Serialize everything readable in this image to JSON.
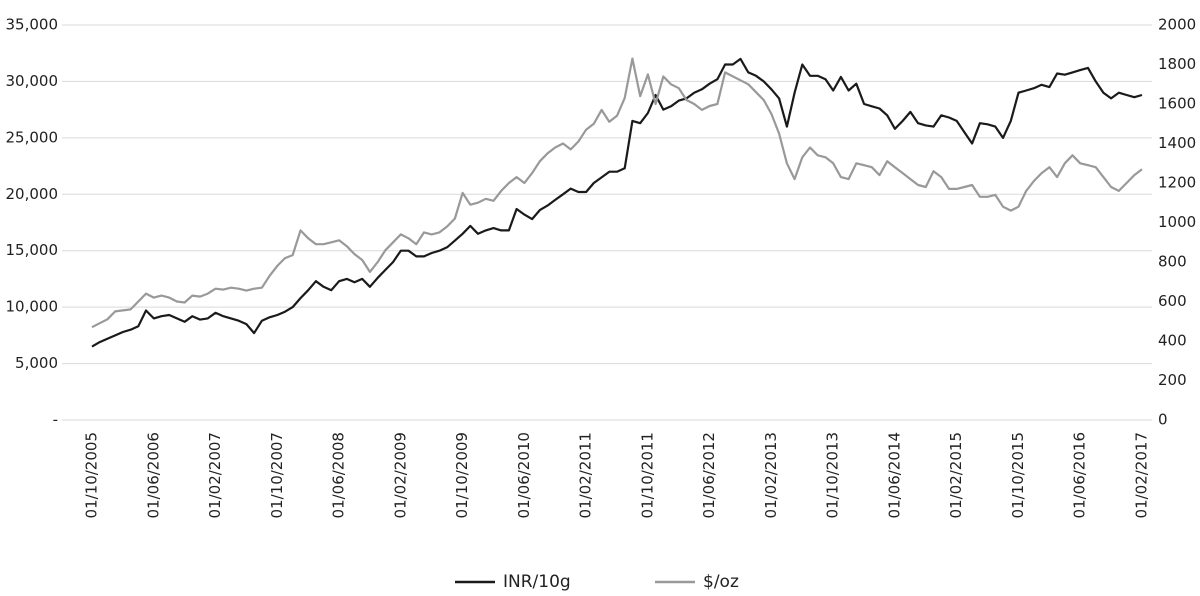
{
  "chart_data": {
    "type": "line",
    "categories": [
      "01/10/2005",
      null,
      null,
      null,
      null,
      null,
      null,
      null,
      "01/06/2006",
      null,
      null,
      null,
      null,
      null,
      null,
      null,
      "01/02/2007",
      null,
      null,
      null,
      null,
      null,
      null,
      null,
      "01/10/2007",
      null,
      null,
      null,
      null,
      null,
      null,
      null,
      "01/06/2008",
      null,
      null,
      null,
      null,
      null,
      null,
      null,
      "01/02/2009",
      null,
      null,
      null,
      null,
      null,
      null,
      null,
      "01/10/2009",
      null,
      null,
      null,
      null,
      null,
      null,
      null,
      "01/06/2010",
      null,
      null,
      null,
      null,
      null,
      null,
      null,
      "01/02/2011",
      null,
      null,
      null,
      null,
      null,
      null,
      null,
      "01/10/2011",
      null,
      null,
      null,
      null,
      null,
      null,
      null,
      "01/06/2012",
      null,
      null,
      null,
      null,
      null,
      null,
      null,
      "01/02/2013",
      null,
      null,
      null,
      null,
      null,
      null,
      null,
      "01/10/2013",
      null,
      null,
      null,
      null,
      null,
      null,
      null,
      "01/06/2014",
      null,
      null,
      null,
      null,
      null,
      null,
      null,
      "01/02/2015",
      null,
      null,
      null,
      null,
      null,
      null,
      null,
      "01/10/2015",
      null,
      null,
      null,
      null,
      null,
      null,
      null,
      "01/06/2016",
      null,
      null,
      null,
      null,
      null,
      null,
      null,
      "01/02/2017"
    ],
    "series": [
      {
        "name": "INR/10g",
        "color": "#1a1a1a",
        "values": [
          6500,
          6900,
          7200,
          7500,
          7800,
          8000,
          8300,
          9700,
          9000,
          9200,
          9300,
          9000,
          8700,
          9200,
          8900,
          9000,
          9500,
          9200,
          9000,
          8800,
          8500,
          7700,
          8800,
          9100,
          9300,
          9600,
          10000,
          10800,
          11500,
          12300,
          11800,
          11500,
          12300,
          12500,
          12200,
          12500,
          11800,
          12600,
          13300,
          14000,
          15000,
          15000,
          14500,
          14500,
          14800,
          15000,
          15300,
          15900,
          16500,
          17200,
          16500,
          16800,
          17000,
          16800,
          16800,
          18700,
          18200,
          17800,
          18600,
          19000,
          19500,
          20000,
          20500,
          20200,
          20200,
          21000,
          21500,
          22000,
          22000,
          22300,
          26500,
          26300,
          27200,
          28800,
          27500,
          27800,
          28300,
          28500,
          29000,
          29300,
          29800,
          30200,
          31500,
          31500,
          32000,
          30800,
          30500,
          30000,
          29300,
          28500,
          26000,
          29000,
          31500,
          30500,
          30500,
          30200,
          29200,
          30400,
          29200,
          29800,
          28000,
          27800,
          27600,
          27000,
          25800,
          26500,
          27300,
          26300,
          26100,
          26000,
          27000,
          26800,
          26500,
          25500,
          24500,
          26300,
          26200,
          26000,
          25000,
          26500,
          29000,
          29200,
          29400,
          29700,
          29500,
          30700,
          30600,
          30800,
          31000,
          31200,
          30000,
          29000,
          28500,
          29000,
          28800,
          28600,
          28800
        ]
      },
      {
        "name": "$/oz",
        "color": "#999999",
        "axis": "y2",
        "values": [
          470,
          490,
          510,
          550,
          555,
          560,
          600,
          640,
          620,
          630,
          620,
          600,
          595,
          630,
          625,
          640,
          665,
          660,
          670,
          665,
          655,
          665,
          670,
          730,
          780,
          820,
          835,
          960,
          920,
          890,
          890,
          900,
          910,
          880,
          840,
          810,
          750,
          800,
          860,
          900,
          940,
          920,
          890,
          950,
          940,
          950,
          980,
          1020,
          1150,
          1090,
          1100,
          1120,
          1110,
          1160,
          1200,
          1230,
          1200,
          1250,
          1310,
          1350,
          1380,
          1400,
          1370,
          1410,
          1470,
          1500,
          1570,
          1510,
          1540,
          1630,
          1830,
          1640,
          1750,
          1600,
          1740,
          1700,
          1680,
          1620,
          1600,
          1570,
          1590,
          1600,
          1760,
          1740,
          1720,
          1700,
          1660,
          1620,
          1550,
          1450,
          1300,
          1220,
          1330,
          1380,
          1340,
          1330,
          1300,
          1230,
          1220,
          1300,
          1290,
          1280,
          1240,
          1310,
          1280,
          1250,
          1220,
          1190,
          1180,
          1260,
          1230,
          1170,
          1170,
          1180,
          1190,
          1130,
          1130,
          1140,
          1080,
          1060,
          1080,
          1160,
          1210,
          1250,
          1280,
          1230,
          1300,
          1340,
          1300,
          1290,
          1280,
          1230,
          1180,
          1160,
          1200,
          1240,
          1270
        ]
      }
    ],
    "ylim": [
      0,
      35000
    ],
    "yticks": [
      {
        "value": 0,
        "label": "-"
      },
      {
        "value": 5000,
        "label": "5,000"
      },
      {
        "value": 10000,
        "label": "10,000"
      },
      {
        "value": 15000,
        "label": "15,000"
      },
      {
        "value": 20000,
        "label": "20,000"
      },
      {
        "value": 25000,
        "label": "25,000"
      },
      {
        "value": 30000,
        "label": "30,000"
      },
      {
        "value": 35000,
        "label": "35,000"
      }
    ],
    "y2lim": [
      0,
      2000
    ],
    "y2ticks": [
      0,
      200,
      400,
      600,
      800,
      1000,
      1200,
      1400,
      1600,
      1800,
      2000
    ],
    "grid": true,
    "legend": "bottom"
  }
}
